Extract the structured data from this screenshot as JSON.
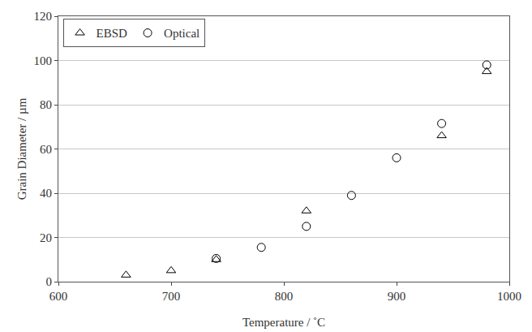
{
  "chart_data": {
    "type": "scatter",
    "x_label": "Temperature / ˚C",
    "y_label": "Grain Diameter / µm",
    "series": [
      {
        "name": "EBSD",
        "color": "#000000",
        "marker": "triangle",
        "x": [
          660,
          700,
          740,
          820,
          940,
          980
        ],
        "values": [
          3,
          5,
          10,
          32,
          66,
          95
        ]
      },
      {
        "name": "Optical",
        "color": "#000000",
        "marker": "circle",
        "x": [
          740,
          780,
          820,
          860,
          900,
          940,
          980
        ],
        "values": [
          10.5,
          15.5,
          25,
          39,
          56,
          71.5,
          98
        ]
      }
    ],
    "xlim": [
      600,
      1000
    ],
    "xticks": [
      600,
      700,
      800,
      900,
      1000
    ],
    "ylim": [
      0,
      120
    ],
    "yticks": [
      0,
      20,
      40,
      60,
      80,
      100,
      120
    ],
    "grid": "y",
    "legend": "top left"
  }
}
